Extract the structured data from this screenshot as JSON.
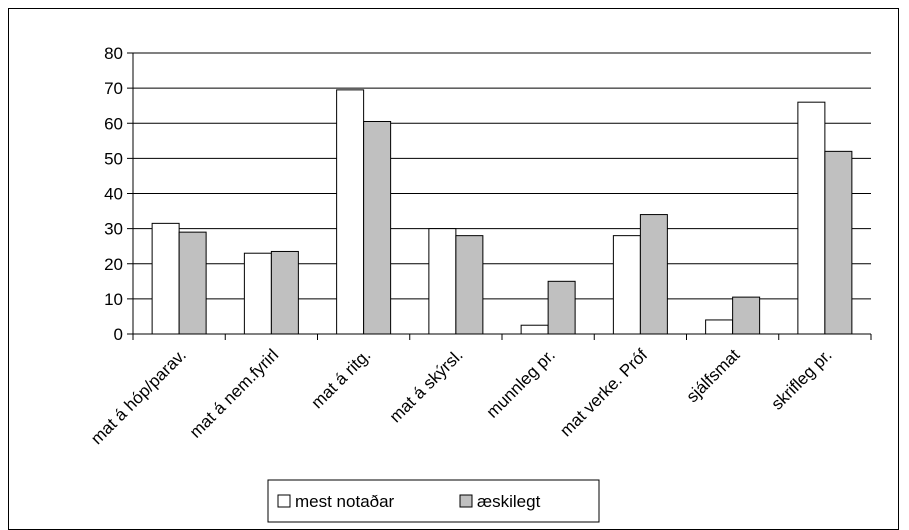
{
  "chart_data": {
    "type": "bar",
    "categories": [
      "mat á hóp/parav.",
      "mat á nem.fyrirl",
      "mat á ritg.",
      "mat á skýrsl.",
      "munnleg pr.",
      "mat verke. Próf",
      "sjálfsmat",
      "skrifleg pr."
    ],
    "series": [
      {
        "name": "mest notaðar",
        "values": [
          31.5,
          23,
          69.5,
          30,
          2.5,
          28,
          4,
          66
        ],
        "color": "#ffffff"
      },
      {
        "name": "æskilegt",
        "values": [
          29,
          23.5,
          60.5,
          28,
          15,
          34,
          10.5,
          52
        ],
        "color": "#c0c0c0"
      }
    ],
    "yticks": [
      0,
      10,
      20,
      30,
      40,
      50,
      60,
      70,
      80
    ],
    "ylim": [
      0,
      80
    ],
    "grid": true,
    "legend": "bottom",
    "title": "",
    "xlabel": "",
    "ylabel": ""
  }
}
